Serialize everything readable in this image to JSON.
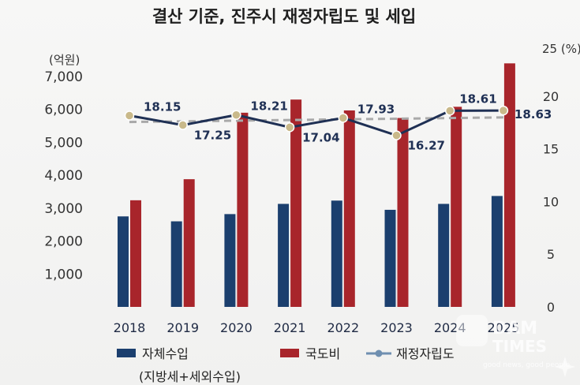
{
  "chart_data": {
    "type": "bar",
    "title": "결산 기준, 진주시 재정자립도 및 세입",
    "y_left_unit": "(억원)",
    "y_right_unit": "25 (%)",
    "y_left_ticks": [
      "1,000",
      "2,000",
      "3,000",
      "4,000",
      "5,000",
      "6,000",
      "7,000"
    ],
    "y_right_ticks": [
      "0",
      "5",
      "10",
      "15",
      "20"
    ],
    "ylim_left": [
      0,
      7000
    ],
    "ylim_right": [
      0,
      25
    ],
    "categories": [
      "2018",
      "2019",
      "2020",
      "2021",
      "2022",
      "2023",
      "2024",
      "2025"
    ],
    "series": [
      {
        "name": "자체수입",
        "axis": "left",
        "kind": "bar",
        "color": "#1b3f6e",
        "values": [
          2750,
          2600,
          2820,
          3130,
          3230,
          2950,
          3130,
          3370
        ]
      },
      {
        "name": "국도비",
        "axis": "left",
        "kind": "bar",
        "color": "#a8252b",
        "values": [
          3240,
          3880,
          5900,
          6300,
          5970,
          5740,
          6080,
          7400
        ]
      },
      {
        "name": "재정자립도",
        "axis": "right",
        "kind": "line",
        "color": "#1f3054",
        "values": [
          18.15,
          17.25,
          18.21,
          17.04,
          17.93,
          16.27,
          18.61,
          18.63
        ],
        "labels": [
          "18.15",
          "17.25",
          "18.21",
          "17.04",
          "17.93",
          "16.27",
          "18.61",
          "18.63"
        ]
      }
    ],
    "trendline": {
      "color": "#a9a9a9",
      "style": "dashed"
    },
    "legend": {
      "position": "bottom",
      "items": [
        "자체수입",
        "국도비",
        "재정자립도"
      ],
      "note": "(지방세+세외수입)"
    },
    "grid": false
  },
  "watermark": {
    "brand": "DAM",
    "sub": "TIMES",
    "tagline": "good news, good people"
  }
}
